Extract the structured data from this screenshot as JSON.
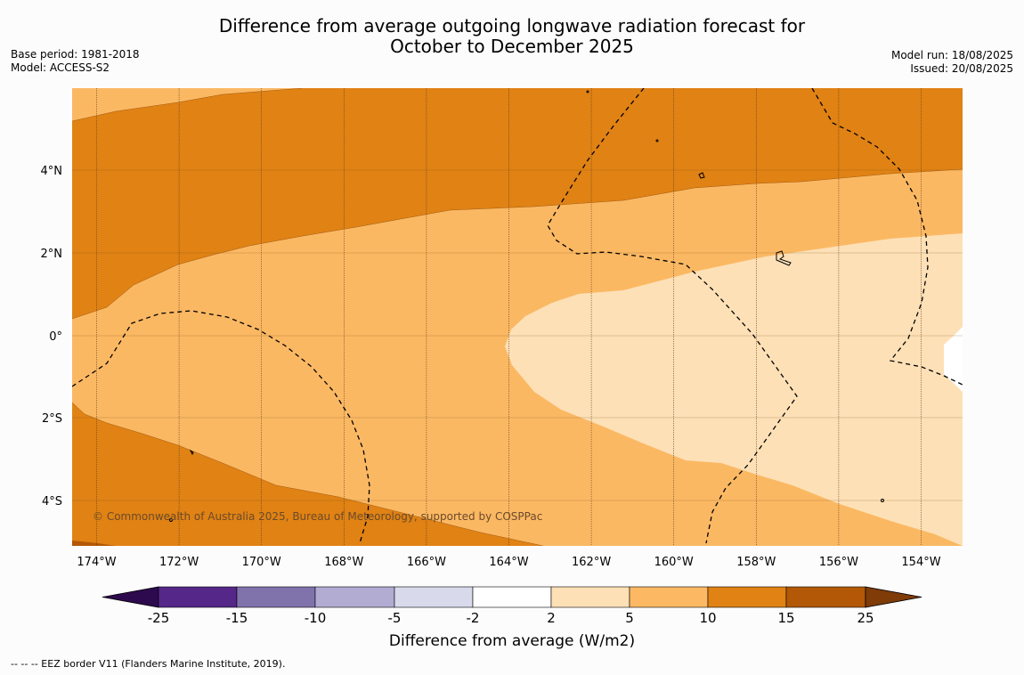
{
  "title_line1": "Difference from average outgoing longwave radiation forecast for",
  "title_line2": "October to December 2025",
  "base_period": "Base period: 1981-2018",
  "model": "Model: ACCESS-S2",
  "model_run": "Model run: 18/08/2025",
  "issued": "Issued: 20/08/2025",
  "copyright": "© Commonwealth of Australia 2025, Bureau of Meteorology, supported by COSPPac",
  "lon_labels": [
    "174°W",
    "172°W",
    "170°W",
    "168°W",
    "166°W",
    "164°W",
    "162°W",
    "160°W",
    "158°W",
    "156°W",
    "154°W"
  ],
  "lat_labels": [
    "4°N",
    "2°N",
    "0°",
    "2°S",
    "4°S"
  ],
  "colorbar": {
    "label": "Difference from average (W/m2)",
    "ticks": [
      "-25",
      "-15",
      "-10",
      "-5",
      "-2",
      "2",
      "5",
      "10",
      "15",
      "25"
    ],
    "colors": [
      "#2d0a4e",
      "#542788",
      "#8073ac",
      "#b2abd2",
      "#d8daeb",
      "#ffffff",
      "#fee0b6",
      "#fdb863",
      "#e08214",
      "#b35806",
      "#7f3b08"
    ]
  },
  "legend_note": "--  --  -- EEZ border V11 (Flanders Marine Institute, 2019).",
  "map_colors": {
    "band_5_10": "#fbb863",
    "band_10_15": "#e08214",
    "band_15_25": "#b35806",
    "band_2_5": "#fde0b6",
    "band_neutral": "#ffffff"
  }
}
